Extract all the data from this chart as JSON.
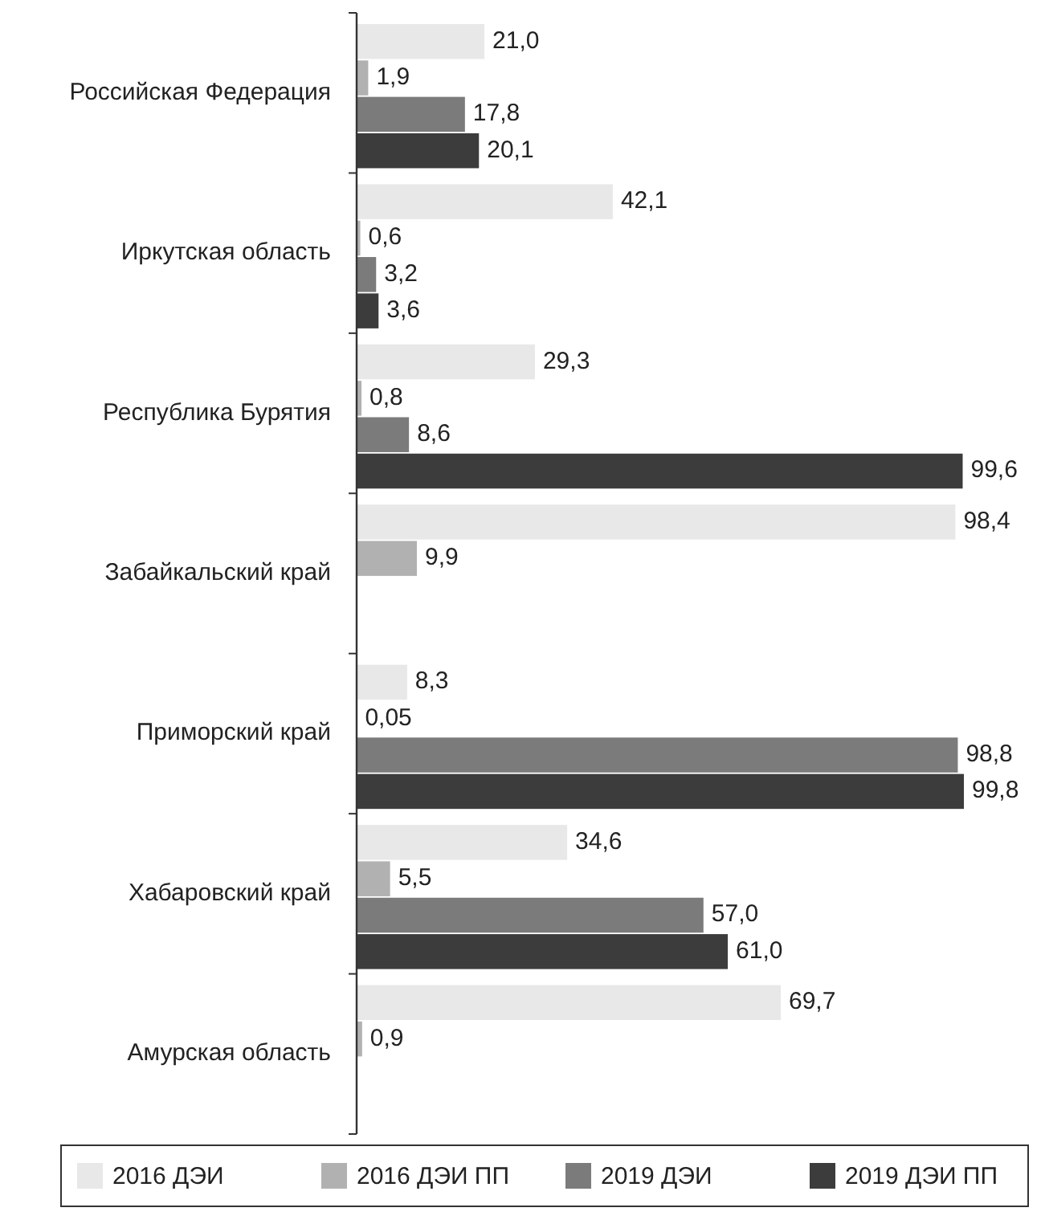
{
  "chart_data": {
    "type": "bar",
    "orientation": "horizontal",
    "categories": [
      "Российская Федерация",
      "Иркутская область",
      "Республика Бурятия",
      "Забайкальский край",
      "Приморский край",
      "Хабаровский край",
      "Амурская область"
    ],
    "series": [
      {
        "name": "2016 ДЭИ",
        "color": "#e8e8e8",
        "values": [
          21.0,
          42.1,
          29.3,
          98.4,
          8.3,
          34.6,
          69.7
        ],
        "value_labels": [
          "21,0",
          "42,1",
          "29,3",
          "98,4",
          "8,3",
          "34,6",
          "69,7"
        ]
      },
      {
        "name": "2016 ДЭИ ПП",
        "color": "#b1b1b1",
        "values": [
          1.9,
          0.6,
          0.8,
          9.9,
          0.05,
          5.5,
          0.9
        ],
        "value_labels": [
          "1,9",
          "0,6",
          "0,8",
          "9,9",
          "0,05",
          "5,5",
          "0,9"
        ]
      },
      {
        "name": "2019 ДЭИ",
        "color": "#7b7b7b",
        "values": [
          17.8,
          3.2,
          8.6,
          null,
          98.8,
          57.0,
          null
        ],
        "value_labels": [
          "17,8",
          "3,2",
          "8,6",
          null,
          "98,8",
          "57,0",
          null
        ]
      },
      {
        "name": "2019 ДЭИ ПП",
        "color": "#3c3c3c",
        "values": [
          20.1,
          3.6,
          99.6,
          null,
          99.8,
          61.0,
          null
        ],
        "value_labels": [
          "20,1",
          "3,6",
          "99,6",
          null,
          "99,8",
          "61,0",
          null
        ]
      }
    ],
    "legend": "bottom",
    "grid": false
  }
}
